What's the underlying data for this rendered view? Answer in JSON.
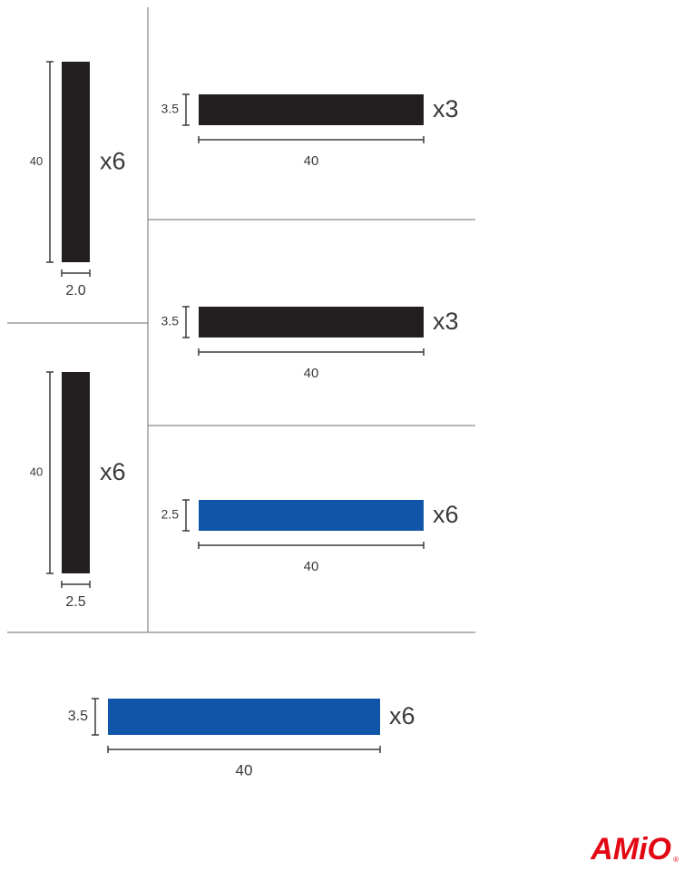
{
  "strips": [
    {
      "length": "40",
      "width": "2.0",
      "quantity": "x6",
      "color": "#231f20"
    },
    {
      "length": "40",
      "width": "2.5",
      "quantity": "x6",
      "color": "#231f20"
    },
    {
      "length": "40",
      "width": "3.5",
      "quantity": "x3",
      "color": "#231f20"
    },
    {
      "length": "40",
      "width": "3.5",
      "quantity": "x3",
      "color": "#231f20"
    },
    {
      "length": "40",
      "width": "2.5",
      "quantity": "x6",
      "color": "#1155a8"
    },
    {
      "length": "40",
      "width": "3.5",
      "quantity": "x6",
      "color": "#1155a8"
    }
  ],
  "logo": {
    "text": "AMiO",
    "mark": "®"
  }
}
